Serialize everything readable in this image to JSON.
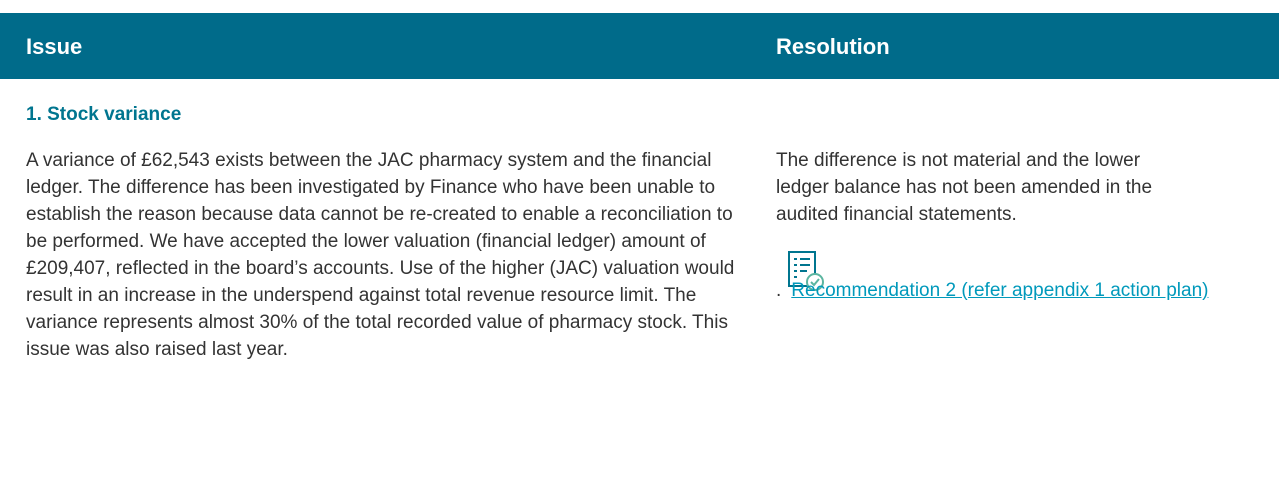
{
  "table": {
    "headers": [
      "Issue",
      "Resolution"
    ],
    "rows": [
      {
        "title": "1. Stock variance",
        "issue": "A variance of £62,543 exists between the JAC pharmacy system and the financial ledger. The difference has been investigated by Finance who have been unable to establish the reason because data cannot be re-created to enable a reconciliation to be performed. We have accepted the lower valuation (financial ledger) amount of £209,407, reflected in the board’s accounts. Use of the higher (JAC) valuation would result in an increase in the underspend against total revenue resource limit. The variance represents almost 30% of the total recorded value of pharmacy stock.  This issue was also raised last year.",
        "resolution": "The difference is not material and the lower ledger balance has not been amended in the audited financial statements.",
        "prefix": ".",
        "link": "Recommendation 2 (refer appendix 1 action plan)"
      }
    ]
  }
}
